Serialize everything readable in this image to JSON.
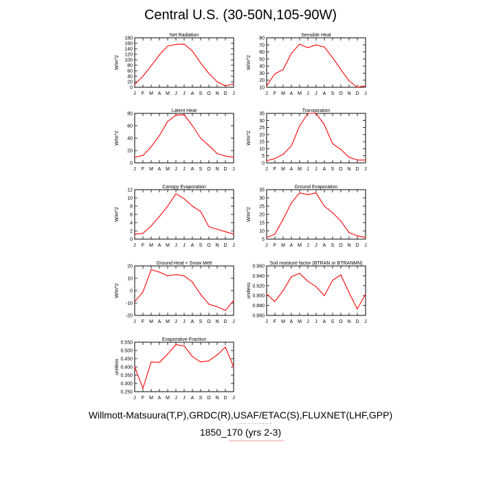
{
  "page_title": "Central U.S. (30-50N,105-90W)",
  "footer": {
    "line1": "Willmott-Matsuura(T,P),GRDC(R),USAF/ETAC(S),FLUXNET(LHF,GPP)",
    "line2": "1850_170 (yrs 2-3)"
  },
  "colors": {
    "series": "#ff0000",
    "axis": "#000000"
  },
  "chart_data": [
    {
      "type": "line",
      "title": "Net Radiation",
      "ylabel": "W/m^2",
      "categories": [
        "J",
        "F",
        "M",
        "A",
        "M",
        "J",
        "J",
        "A",
        "S",
        "O",
        "N",
        "D",
        "J"
      ],
      "ylim": [
        0,
        180
      ],
      "yticks": [
        0,
        20,
        40,
        60,
        80,
        100,
        120,
        140,
        160,
        180
      ],
      "ytick_labels": [
        "0",
        "20",
        "40",
        "60",
        "80",
        "100",
        "120",
        "140",
        "160",
        "180"
      ],
      "values": [
        10,
        40,
        78,
        118,
        150,
        156,
        157,
        132,
        88,
        50,
        20,
        5,
        12
      ]
    },
    {
      "type": "line",
      "title": "Sensible Heat",
      "ylabel": "W/m^2",
      "categories": [
        "J",
        "F",
        "M",
        "A",
        "M",
        "J",
        "J",
        "A",
        "S",
        "O",
        "N",
        "D",
        "J"
      ],
      "ylim": [
        10,
        80
      ],
      "yticks": [
        10,
        20,
        30,
        40,
        50,
        60,
        70,
        80
      ],
      "ytick_labels": [
        "10",
        "20",
        "30",
        "40",
        "50",
        "60",
        "70",
        "80"
      ],
      "values": [
        12,
        29,
        35,
        58,
        71,
        66,
        70,
        67,
        52,
        35,
        19,
        10,
        12
      ]
    },
    {
      "type": "line",
      "title": "Latent Heat",
      "ylabel": "W/m^2",
      "categories": [
        "J",
        "F",
        "M",
        "A",
        "M",
        "J",
        "J",
        "A",
        "S",
        "O",
        "N",
        "D",
        "J"
      ],
      "ylim": [
        0,
        80
      ],
      "yticks": [
        0,
        20,
        40,
        60,
        80
      ],
      "ytick_labels": [
        "0",
        "20",
        "40",
        "60",
        "80"
      ],
      "values": [
        9,
        12,
        26,
        44,
        67,
        77,
        78,
        60,
        40,
        28,
        15,
        11,
        9
      ]
    },
    {
      "type": "line",
      "title": "Transpiration",
      "ylabel": "W/m^2",
      "categories": [
        "J",
        "F",
        "M",
        "A",
        "M",
        "J",
        "J",
        "A",
        "S",
        "O",
        "N",
        "D",
        "J"
      ],
      "ylim": [
        0,
        35
      ],
      "yticks": [
        0,
        5,
        10,
        15,
        20,
        25,
        30,
        35
      ],
      "ytick_labels": [
        "0",
        "5",
        "10",
        "15",
        "20",
        "25",
        "30",
        "35"
      ],
      "values": [
        1.5,
        3,
        6,
        12,
        26,
        35,
        35,
        27,
        13.5,
        9.5,
        4,
        2,
        2
      ]
    },
    {
      "type": "line",
      "title": "Canopy Evaporation",
      "ylabel": "W/m^2",
      "categories": [
        "J",
        "F",
        "M",
        "A",
        "M",
        "J",
        "J",
        "A",
        "S",
        "O",
        "N",
        "D",
        "J"
      ],
      "ylim": [
        0,
        12
      ],
      "yticks": [
        0,
        2,
        4,
        6,
        8,
        10,
        12
      ],
      "ytick_labels": [
        "0",
        "2",
        "4",
        "6",
        "8",
        "10",
        "12"
      ],
      "values": [
        1.2,
        1.4,
        3.2,
        5.5,
        8,
        11,
        9.8,
        8,
        6.7,
        3,
        2.4,
        1.8,
        1.2
      ]
    },
    {
      "type": "line",
      "title": "Ground Evaporation",
      "ylabel": "W/m^2",
      "categories": [
        "J",
        "F",
        "M",
        "A",
        "M",
        "J",
        "J",
        "A",
        "S",
        "O",
        "N",
        "D",
        "J"
      ],
      "ylim": [
        5,
        35
      ],
      "yticks": [
        5,
        10,
        15,
        20,
        25,
        30,
        35
      ],
      "ytick_labels": [
        "5",
        "10",
        "15",
        "20",
        "25",
        "30",
        "35"
      ],
      "values": [
        6,
        8,
        17,
        27,
        33,
        32,
        33,
        25,
        21,
        16,
        9,
        7,
        6
      ]
    },
    {
      "type": "line",
      "title": "Ground Heat + Snow Melt",
      "ylabel": "W/m^2",
      "categories": [
        "J",
        "F",
        "M",
        "A",
        "M",
        "J",
        "J",
        "A",
        "S",
        "O",
        "N",
        "D",
        "J"
      ],
      "ylim": [
        -20,
        20
      ],
      "yticks": [
        -20,
        -10,
        0,
        10,
        20
      ],
      "ytick_labels": [
        "-20",
        "-10",
        "0",
        "10",
        "20"
      ],
      "values": [
        -9,
        -1,
        17,
        15,
        12,
        13,
        12,
        7,
        -3,
        -11,
        -13,
        -16,
        -8
      ]
    },
    {
      "type": "line",
      "title": "Soil moisture factor (BTRAN or BTRANMN)",
      "ylabel": "unitless",
      "categories": [
        "J",
        "F",
        "M",
        "A",
        "M",
        "J",
        "J",
        "A",
        "S",
        "O",
        "N",
        "D",
        "J"
      ],
      "ylim": [
        0.86,
        0.96
      ],
      "yticks": [
        0.86,
        0.88,
        0.9,
        0.92,
        0.94,
        0.96
      ],
      "ytick_labels": [
        "0.860",
        "0.880",
        "0.900",
        "0.920",
        "0.940",
        "0.960"
      ],
      "values": [
        0.903,
        0.888,
        0.91,
        0.938,
        0.945,
        0.929,
        0.918,
        0.9,
        0.931,
        0.942,
        0.906,
        0.873,
        0.903
      ]
    },
    {
      "type": "line",
      "title": "Evaporative Fraction",
      "ylabel": "unitless",
      "categories": [
        "J",
        "F",
        "M",
        "A",
        "M",
        "J",
        "J",
        "A",
        "S",
        "O",
        "N",
        "D",
        "J"
      ],
      "ylim": [
        0.25,
        0.55
      ],
      "yticks": [
        0.25,
        0.3,
        0.35,
        0.4,
        0.45,
        0.5,
        0.55
      ],
      "ytick_labels": [
        "0.250",
        "0.300",
        "0.350",
        "0.400",
        "0.450",
        "0.500",
        "0.550"
      ],
      "values": [
        0.4,
        0.27,
        0.43,
        0.428,
        0.478,
        0.535,
        0.527,
        0.463,
        0.43,
        0.437,
        0.473,
        0.52,
        0.4
      ]
    }
  ]
}
